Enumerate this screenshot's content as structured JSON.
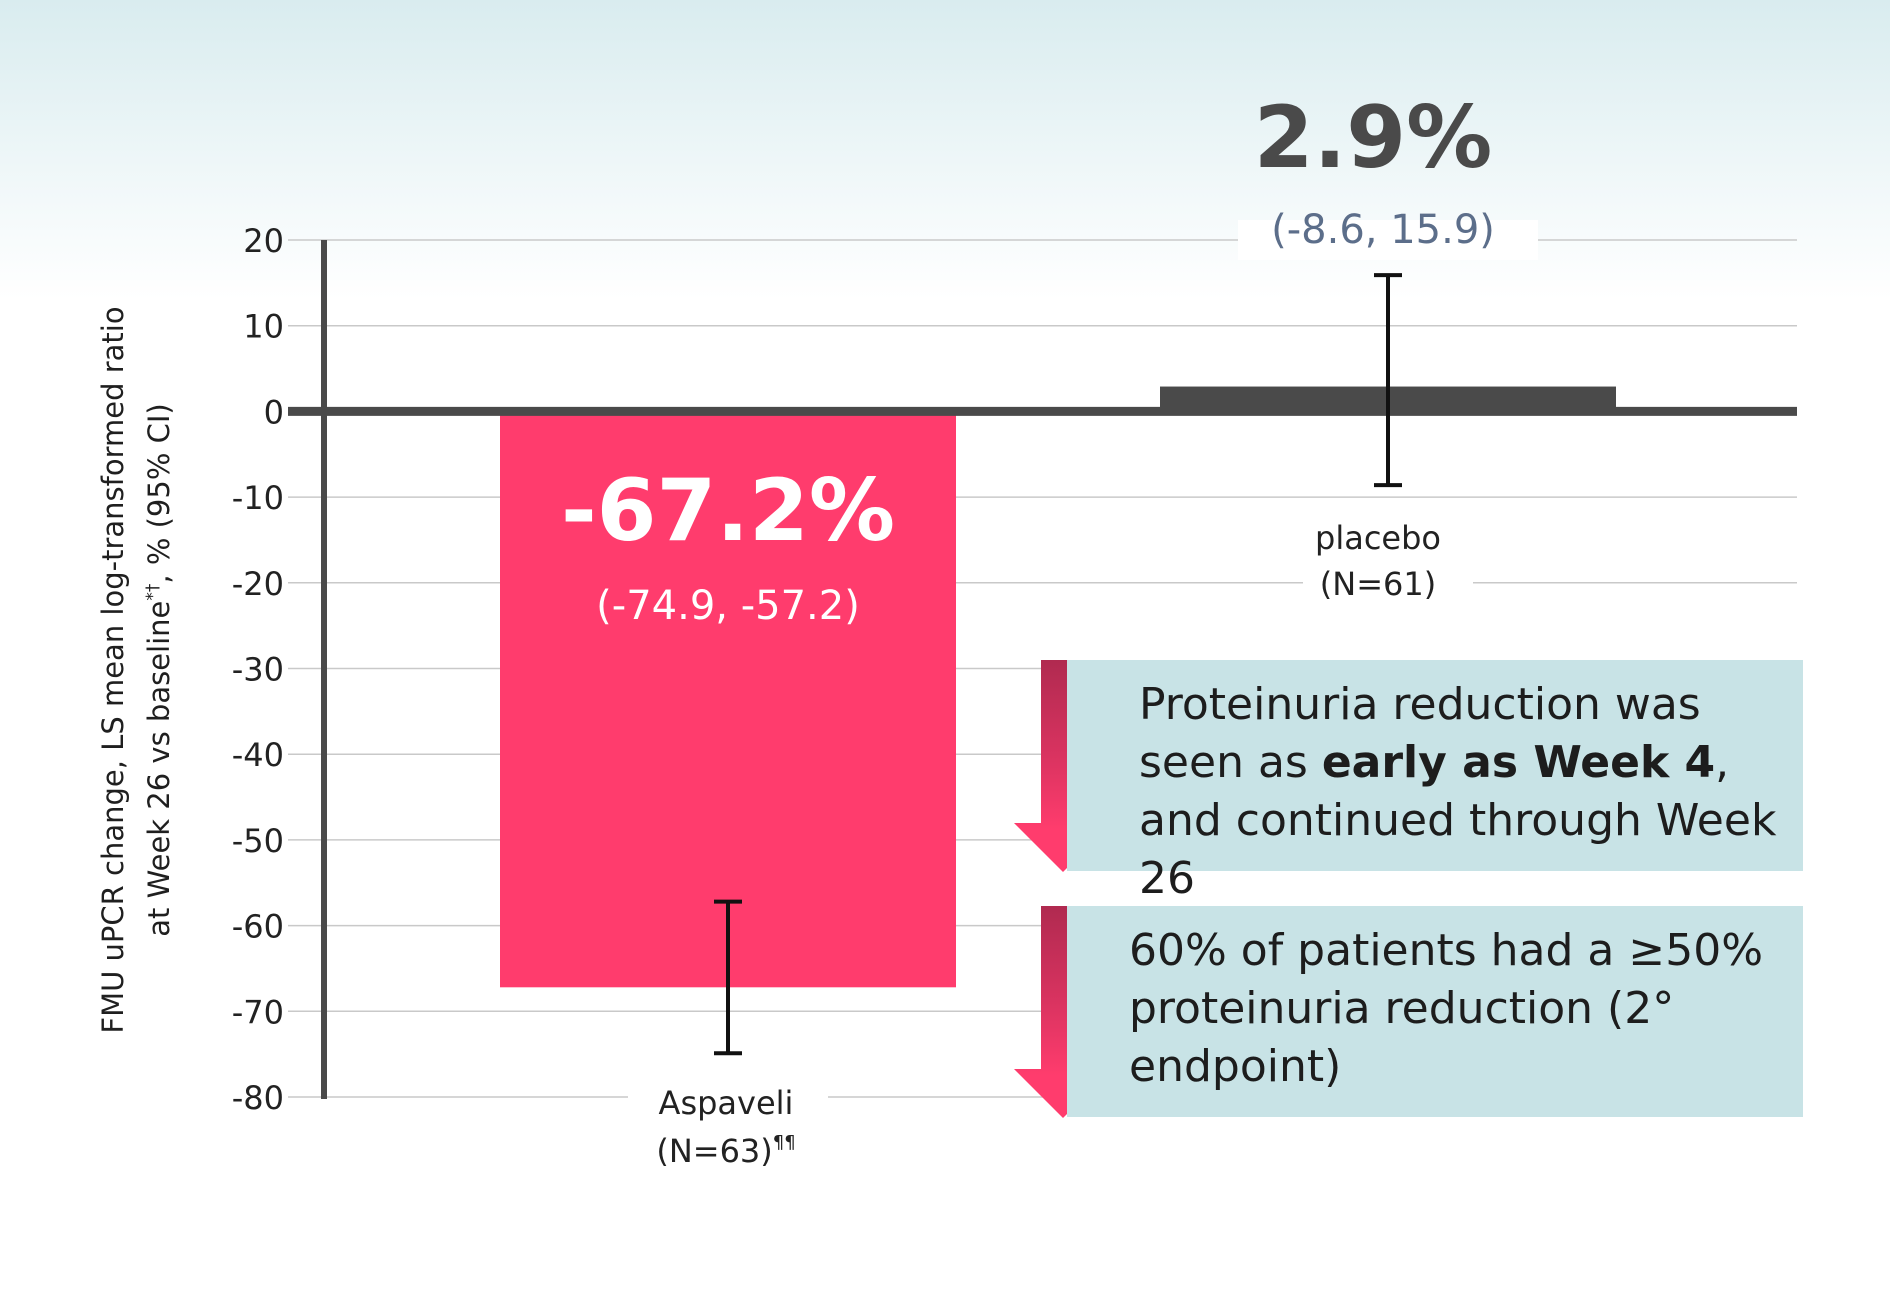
{
  "chart_data": {
    "type": "bar",
    "categories": [
      "Aspaveli",
      "placebo"
    ],
    "category_labels": [
      {
        "name": "Aspaveli",
        "n": "(N=63)",
        "superscript": "¶¶"
      },
      {
        "name": "placebo",
        "n": "(N=61)",
        "superscript": ""
      }
    ],
    "values": [
      -67.2,
      2.9
    ],
    "ci": [
      [
        -74.9,
        -57.2
      ],
      [
        -8.6,
        15.9
      ]
    ],
    "value_labels": [
      "-67.2%",
      "2.9%"
    ],
    "ci_labels": [
      "(-74.9, -57.2)",
      "(-8.6, 15.9)"
    ],
    "ylabel_line1": "FMU uPCR change, LS mean log-transformed ratio",
    "ylabel_line2": "at Week 26 vs baseline",
    "ylabel_sup": "*†",
    "ylabel_suffix": ", % (95% CI)",
    "ylim": [
      -80,
      20
    ],
    "yticks": [
      20,
      10,
      0,
      -10,
      -20,
      -30,
      -40,
      -50,
      -60,
      -70,
      -80
    ],
    "grid": true,
    "colors": {
      "aspaveli": "#ff3c6d",
      "placebo": "#4a4a4a",
      "axis": "#4a4a4a",
      "grid": "#c9c9c9",
      "ci_label_placebo": "#5c6e8a"
    }
  },
  "callouts": [
    {
      "pre": "Proteinuria reduction was seen as ",
      "bold": "early as Week 4",
      "post": ", and continued through Week 26"
    },
    {
      "pre": "60% of patients had a ≥50% proteinuria reduction (2° endpoint)",
      "bold": "",
      "post": ""
    }
  ],
  "arrow_colors": {
    "top": "#b02a50",
    "bottom": "#ff3c6d"
  },
  "callout_bg": "#c8e3e6"
}
